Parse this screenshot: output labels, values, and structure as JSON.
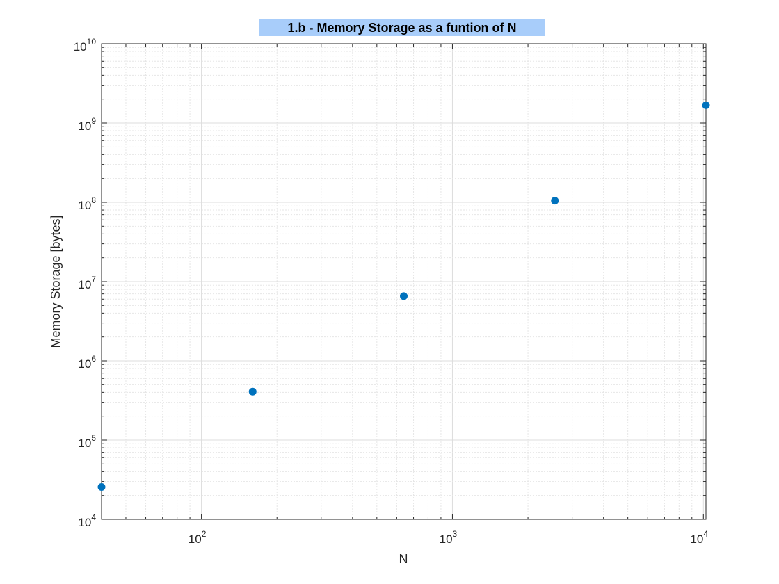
{
  "chart_data": {
    "type": "scatter",
    "title": "1.b - Memory Storage as a funtion of N",
    "xlabel": "N",
    "ylabel": "Memory Storage [bytes]",
    "xscale": "log",
    "yscale": "log",
    "xlim": [
      40,
      10240
    ],
    "ylim": [
      10000,
      10000000000
    ],
    "grid": true,
    "minor_grid": true,
    "marker_color": "#0072BD",
    "x_ticks": [
      {
        "base": "10",
        "exp": "2",
        "value": 100
      },
      {
        "base": "10",
        "exp": "3",
        "value": 1000
      },
      {
        "base": "10",
        "exp": "4",
        "value": 10000
      }
    ],
    "y_ticks": [
      {
        "base": "10",
        "exp": "4",
        "value": 10000
      },
      {
        "base": "10",
        "exp": "5",
        "value": 100000
      },
      {
        "base": "10",
        "exp": "6",
        "value": 1000000
      },
      {
        "base": "10",
        "exp": "7",
        "value": 10000000
      },
      {
        "base": "10",
        "exp": "8",
        "value": 100000000
      },
      {
        "base": "10",
        "exp": "9",
        "value": 1000000000
      },
      {
        "base": "10",
        "exp": "10",
        "value": 10000000000
      }
    ],
    "x": [
      40,
      160,
      640,
      2560,
      10240
    ],
    "y": [
      25600,
      409600,
      6553600,
      104857600,
      1677721600
    ]
  }
}
